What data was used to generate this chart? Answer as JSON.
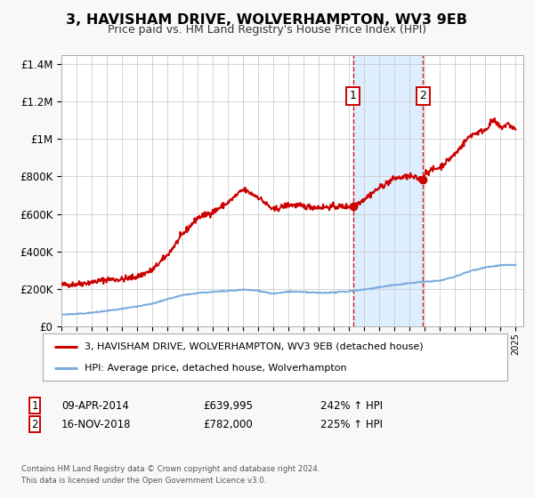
{
  "title": "3, HAVISHAM DRIVE, WOLVERHAMPTON, WV3 9EB",
  "subtitle": "Price paid vs. HM Land Registry's House Price Index (HPI)",
  "background_color": "#f8f8f8",
  "plot_bg_color": "#ffffff",
  "grid_color": "#cccccc",
  "red_line_color": "#cc0000",
  "blue_line_color": "#7aaadd",
  "shaded_region_color": "#ddeeff",
  "sale1_date_num": 2014.27,
  "sale1_price": 639995,
  "sale2_date_num": 2018.88,
  "sale2_price": 782000,
  "xmin": 1995,
  "xmax": 2025.5,
  "ymin": 0,
  "ymax": 1450000,
  "yticks": [
    0,
    200000,
    400000,
    600000,
    800000,
    1000000,
    1200000,
    1400000
  ],
  "ytick_labels": [
    "£0",
    "£200K",
    "£400K",
    "£600K",
    "£800K",
    "£1M",
    "£1.2M",
    "£1.4M"
  ],
  "legend1_label": "3, HAVISHAM DRIVE, WOLVERHAMPTON, WV3 9EB (detached house)",
  "legend2_label": "HPI: Average price, detached house, Wolverhampton",
  "annotation1_date": "09-APR-2014",
  "annotation1_price": "£639,995",
  "annotation1_hpi": "242% ↑ HPI",
  "annotation2_date": "16-NOV-2018",
  "annotation2_price": "£782,000",
  "annotation2_hpi": "225% ↑ HPI",
  "footer1": "Contains HM Land Registry data © Crown copyright and database right 2024.",
  "footer2": "This data is licensed under the Open Government Licence v3.0."
}
